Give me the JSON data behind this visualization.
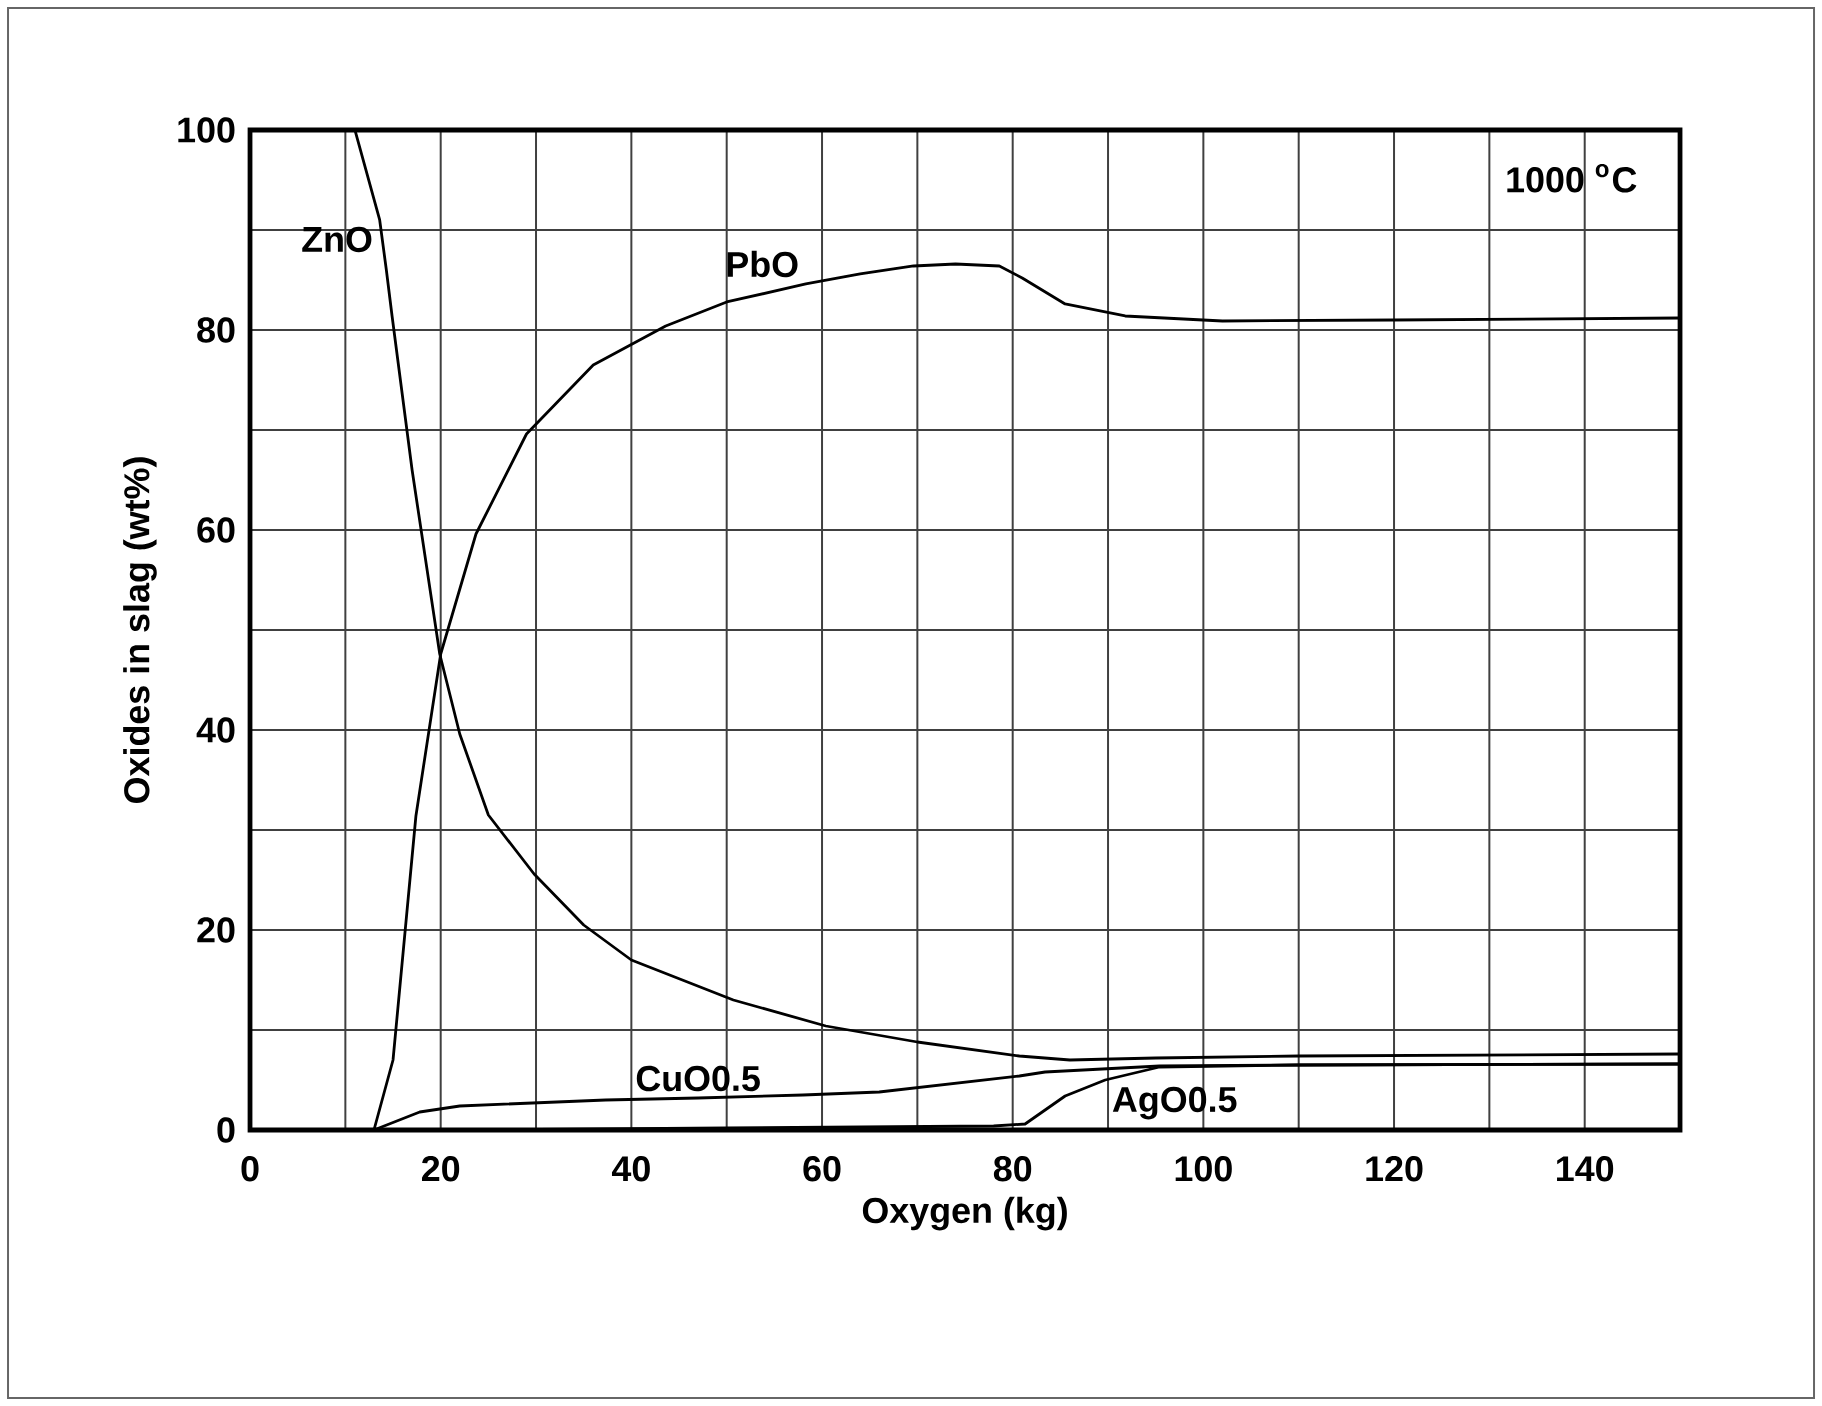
{
  "chart_data": {
    "type": "line",
    "xlabel": "Oxygen (kg)",
    "ylabel": "Oxides in slag (wt%)",
    "annotations": [
      "1000 $^{o}$C"
    ],
    "xlim": [
      0,
      150
    ],
    "ylim": [
      0,
      100
    ],
    "xticks": [
      0,
      {
        "value": 10,
        "label": null
      },
      20,
      {
        "value": 30,
        "label": null
      },
      40,
      {
        "value": 50,
        "label": null
      },
      60,
      {
        "value": 70,
        "label": null
      },
      80,
      {
        "value": 90,
        "label": null
      },
      100,
      {
        "value": 110,
        "label": null
      },
      120,
      {
        "value": 130,
        "label": null
      },
      140,
      {
        "value": 150,
        "label": null
      }
    ],
    "yticks": [
      0,
      {
        "value": 10,
        "label": null
      },
      20,
      {
        "value": 30,
        "label": null
      },
      40,
      {
        "value": 50,
        "label": null
      },
      60,
      {
        "value": 70,
        "label": null
      },
      80,
      {
        "value": 90,
        "label": null
      },
      100
    ],
    "grid": true,
    "marker": "none",
    "line_style": "solid",
    "series": [
      {
        "name": "ZnO",
        "color": "#000000",
        "x": [
          11,
          13.6,
          14.3,
          14.9,
          17,
          19.9,
          22,
          25,
          29.8,
          35,
          40,
          50.7,
          60.4,
          70,
          80.7,
          86,
          95,
          110,
          130,
          150
        ],
        "values": [
          100,
          91,
          86,
          81.4,
          66,
          47.6,
          39.6,
          31.5,
          25.6,
          20.5,
          17,
          13,
          10.4,
          8.8,
          7.4,
          7,
          7.2,
          7.4,
          7.5,
          7.6
        ]
      },
      {
        "name": "PbO",
        "color": "#000000",
        "x": [
          13,
          15,
          17.4,
          20,
          23.7,
          29,
          36,
          43.6,
          50,
          58.3,
          64,
          69.6,
          74,
          78.6,
          81,
          85.5,
          91.8,
          102,
          120,
          150
        ],
        "values": [
          0,
          7,
          31.4,
          47.6,
          59.6,
          69.6,
          76.5,
          80.4,
          82.8,
          84.6,
          85.6,
          86.4,
          86.6,
          86.4,
          85.2,
          82.6,
          81.4,
          80.9,
          81,
          81.2
        ]
      },
      {
        "name": "CuO0.5",
        "color": "#000000",
        "x": [
          13,
          17.8,
          22,
          37.3,
          47,
          58,
          66,
          80.7,
          83.4,
          95.4,
          110,
          150
        ],
        "values": [
          0,
          1.8,
          2.4,
          3,
          3.2,
          3.5,
          3.8,
          5.4,
          5.8,
          6.4,
          6.5,
          6.6
        ]
      },
      {
        "name": "AgO0.5",
        "color": "#000000",
        "x": [
          0,
          20,
          50,
          78,
          81.3,
          85.5,
          89.7,
          95.4,
          110,
          150
        ],
        "values": [
          0,
          0,
          0.2,
          0.4,
          0.6,
          3.4,
          5,
          6.3,
          6.5,
          6.6
        ]
      }
    ]
  }
}
